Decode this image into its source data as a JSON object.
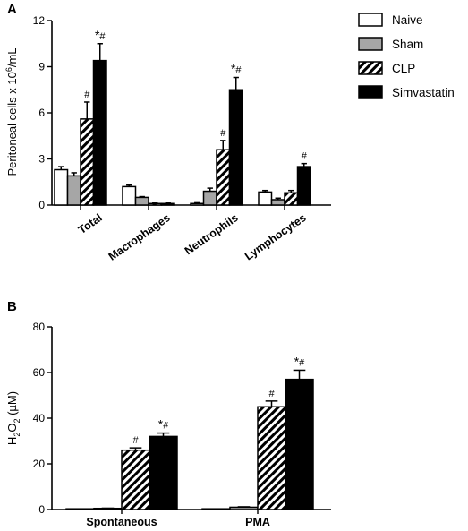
{
  "legend": {
    "entries": [
      {
        "name": "Naive",
        "style": "white"
      },
      {
        "name": "Sham",
        "style": "gray"
      },
      {
        "name": "CLP",
        "style": "hatched"
      },
      {
        "name": "Simvastatin",
        "style": "black"
      }
    ]
  },
  "colors": {
    "white": "#ffffff",
    "gray": "#a6a6a6",
    "black": "#000000",
    "hatch": "#000000"
  },
  "chart_data": [
    {
      "panel": "A",
      "type": "bar",
      "ylabel": "Peritoneal cells x 10⁶/mL",
      "ylabel_base": "Peritoneal cells x 10",
      "ylabel_sup": "6",
      "ylabel_tail": "/mL",
      "ylim": [
        0,
        12
      ],
      "yticks": [
        0,
        3,
        6,
        9,
        12
      ],
      "categories": [
        "Total",
        "Macrophages",
        "Neutrophils",
        "Lymphocytes"
      ],
      "series": [
        {
          "name": "Naive",
          "values": [
            2.3,
            1.2,
            0.1,
            0.85
          ],
          "errors": [
            0.2,
            0.1,
            0.05,
            0.1
          ]
        },
        {
          "name": "Sham",
          "values": [
            1.9,
            0.5,
            0.9,
            0.35
          ],
          "errors": [
            0.2,
            0.05,
            0.2,
            0.1
          ]
        },
        {
          "name": "CLP",
          "values": [
            5.6,
            0.1,
            3.6,
            0.8
          ],
          "errors": [
            1.1,
            0.03,
            0.6,
            0.15
          ]
        },
        {
          "name": "Simvastatin",
          "values": [
            9.4,
            0.1,
            7.5,
            2.5
          ],
          "errors": [
            1.1,
            0.03,
            0.8,
            0.2
          ]
        }
      ],
      "annotations": [
        {
          "category": 0,
          "series": 2,
          "text": "#"
        },
        {
          "category": 0,
          "series": 3,
          "text": "*#"
        },
        {
          "category": 2,
          "series": 2,
          "text": "#"
        },
        {
          "category": 2,
          "series": 3,
          "text": "*#"
        },
        {
          "category": 3,
          "series": 3,
          "text": "#"
        }
      ]
    },
    {
      "panel": "B",
      "type": "bar",
      "ylabel": "H₂O₂ (µM)",
      "ylabel_base": "H",
      "ylabel_sub1": "2",
      "ylabel_mid": "O",
      "ylabel_sub2": "2",
      "ylabel_tail": " (µM)",
      "ylim": [
        0,
        80
      ],
      "yticks": [
        0,
        20,
        40,
        60,
        80
      ],
      "categories": [
        "Spontaneous",
        "PMA"
      ],
      "series": [
        {
          "name": "Naive",
          "values": [
            0.2,
            0.2
          ],
          "errors": [
            0,
            0
          ]
        },
        {
          "name": "Sham",
          "values": [
            0.5,
            1.0
          ],
          "errors": [
            0.1,
            0.2
          ]
        },
        {
          "name": "CLP",
          "values": [
            26,
            45
          ],
          "errors": [
            1,
            2.5
          ]
        },
        {
          "name": "Simvastatin",
          "values": [
            32,
            57
          ],
          "errors": [
            1.5,
            4
          ]
        }
      ],
      "annotations": [
        {
          "category": 0,
          "series": 2,
          "text": "#"
        },
        {
          "category": 0,
          "series": 3,
          "text": "*#"
        },
        {
          "category": 1,
          "series": 2,
          "text": "#"
        },
        {
          "category": 1,
          "series": 3,
          "text": "*#"
        }
      ]
    }
  ]
}
